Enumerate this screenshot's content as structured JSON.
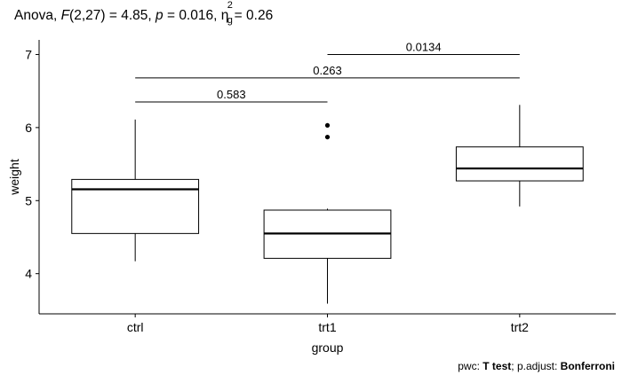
{
  "chart_data": {
    "type": "boxplot",
    "title": {
      "test": "Anova",
      "stat_symbol": "F",
      "df": "(2,27)",
      "stat_value": "4.85",
      "p_symbol": "p",
      "p_value": "0.016",
      "effect_symbol": "η",
      "effect_sup": "2",
      "effect_sub": "g",
      "effect_value": "0.26"
    },
    "xlabel": "group",
    "ylabel": "weight",
    "categories": [
      "ctrl",
      "trt1",
      "trt2"
    ],
    "y_ticks": [
      4,
      5,
      6,
      7
    ],
    "ylim": [
      3.45,
      7.2
    ],
    "boxes": [
      {
        "group": "ctrl",
        "lower_whisker": 4.17,
        "q1": 4.55,
        "median": 5.155,
        "q3": 5.29,
        "upper_whisker": 6.11,
        "outliers": []
      },
      {
        "group": "trt1",
        "lower_whisker": 3.59,
        "q1": 4.21,
        "median": 4.55,
        "q3": 4.87,
        "upper_whisker": 4.89,
        "outliers": [
          5.87,
          6.03
        ]
      },
      {
        "group": "trt2",
        "lower_whisker": 4.92,
        "q1": 5.27,
        "median": 5.44,
        "q3": 5.735,
        "upper_whisker": 6.31,
        "outliers": []
      }
    ],
    "comparisons": [
      {
        "group1": "ctrl",
        "group2": "trt1",
        "label": "0.583",
        "y": 6.35
      },
      {
        "group1": "ctrl",
        "group2": "trt2",
        "label": "0.263",
        "y": 6.68
      },
      {
        "group1": "trt1",
        "group2": "trt2",
        "label": "0.0134",
        "y": 7.0
      }
    ],
    "grid": false,
    "caption": {
      "pwc_label": "pwc: ",
      "pwc_method": "T test",
      "sep": "; p.adjust: ",
      "adjust_method": "Bonferroni"
    }
  }
}
